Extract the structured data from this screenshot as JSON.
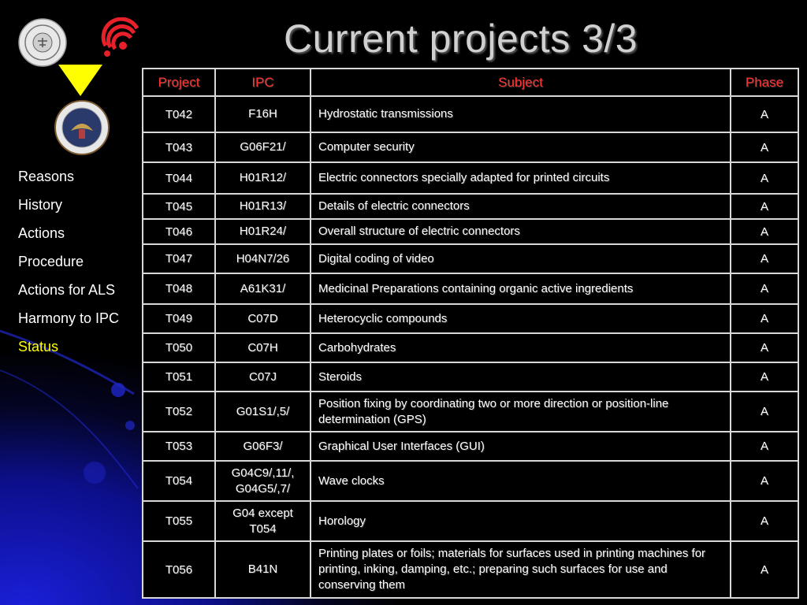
{
  "slide": {
    "title": "Current projects 3/3"
  },
  "nav": {
    "items": [
      {
        "label": "Reasons",
        "active": false
      },
      {
        "label": "History",
        "active": false
      },
      {
        "label": "Actions",
        "active": false
      },
      {
        "label": "Procedure",
        "active": false
      },
      {
        "label": "Actions for ALS",
        "active": false
      },
      {
        "label": "Harmony to IPC",
        "active": false
      },
      {
        "label": "Status",
        "active": true
      }
    ],
    "active_color": "#ffff00"
  },
  "logos": {
    "jpo": "japan-patent-office-seal",
    "epo": "european-patent-office-logo",
    "arrow": "yellow-down-triangle",
    "uspto": "uspto-seal"
  },
  "table": {
    "headers": {
      "project": "Project",
      "ipc": "IPC",
      "subject": "Subject",
      "phase": "Phase"
    },
    "header_color": "#ff3333",
    "rows": [
      {
        "project": "T042",
        "ipc": "F16H",
        "subject": "Hydrostatic transmissions",
        "phase": "A"
      },
      {
        "project": "T043",
        "ipc": "G06F21/",
        "subject": "Computer security",
        "phase": "A"
      },
      {
        "project": "T044",
        "ipc": "H01R12/",
        "subject": "Electric connectors specially adapted for printed circuits",
        "phase": "A"
      },
      {
        "project": "T045",
        "ipc": "H01R13/",
        "subject": "Details of electric connectors",
        "phase": "A"
      },
      {
        "project": "T046",
        "ipc": "H01R24/",
        "subject": "Overall structure of electric connectors",
        "phase": "A"
      },
      {
        "project": "T047",
        "ipc": "H04N7/26",
        "subject": "Digital coding of video",
        "phase": "A"
      },
      {
        "project": "T048",
        "ipc": "A61K31/",
        "subject": "Medicinal Preparations containing organic active ingredients",
        "phase": "A"
      },
      {
        "project": "T049",
        "ipc": "C07D",
        "subject": "Heterocyclic compounds",
        "phase": "A"
      },
      {
        "project": "T050",
        "ipc": "C07H",
        "subject": "Carbohydrates",
        "phase": "A"
      },
      {
        "project": "T051",
        "ipc": "C07J",
        "subject": "Steroids",
        "phase": "A"
      },
      {
        "project": "T052",
        "ipc": "G01S1/,5/",
        "subject": "Position fixing by coordinating two or more direction or position-line determination (GPS)",
        "phase": "A"
      },
      {
        "project": "T053",
        "ipc": "G06F3/",
        "subject": "Graphical User Interfaces (GUI)",
        "phase": "A"
      },
      {
        "project": "T054",
        "ipc": "G04C9/,11/, G04G5/,7/",
        "subject": "Wave clocks",
        "phase": "A"
      },
      {
        "project": "T055",
        "ipc": "G04 except T054",
        "subject": "Horology",
        "phase": "A"
      },
      {
        "project": "T056",
        "ipc": "B41N",
        "subject": "Printing plates or foils; materials for surfaces used in printing machines for printing, inking, damping, etc.; preparing such surfaces for use and conserving them",
        "phase": "A"
      }
    ]
  }
}
